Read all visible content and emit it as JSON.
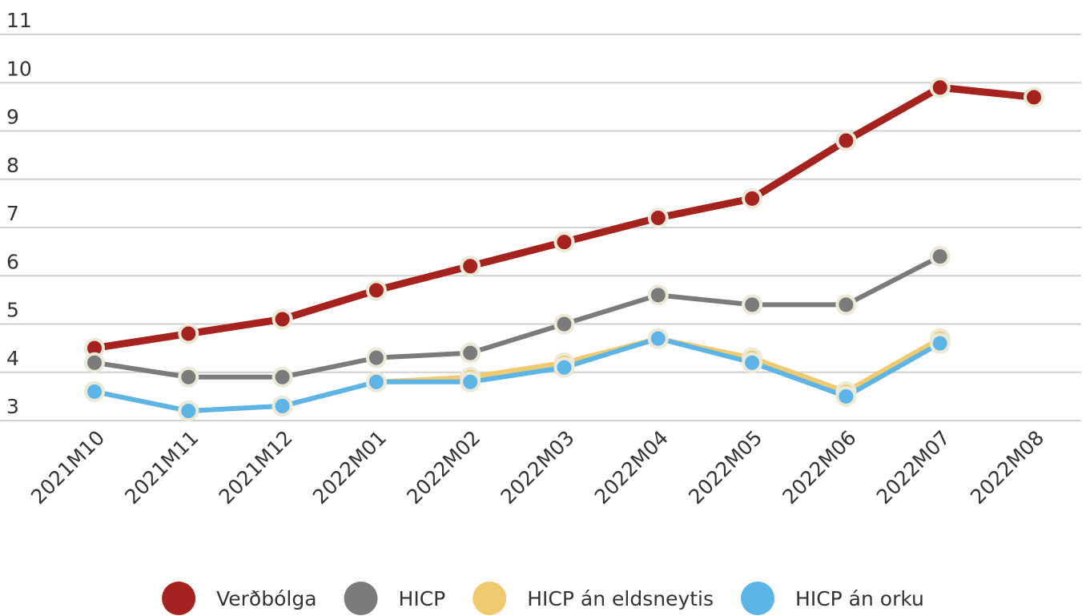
{
  "chart_data": {
    "type": "line",
    "categories": [
      "2021M10",
      "2021M11",
      "2021M12",
      "2022M01",
      "2022M02",
      "2022M03",
      "2022M04",
      "2022M05",
      "2022M06",
      "2022M07",
      "2022M08"
    ],
    "series": [
      {
        "name": "Verðbólga",
        "color": "#a5221e",
        "values": [
          4.5,
          4.8,
          5.1,
          5.7,
          6.2,
          6.7,
          7.2,
          7.6,
          8.8,
          9.9,
          9.7
        ]
      },
      {
        "name": "HICP",
        "color": "#7b7b7b",
        "values": [
          4.2,
          3.9,
          3.9,
          4.3,
          4.4,
          5.0,
          5.6,
          5.4,
          5.4,
          6.4,
          null
        ]
      },
      {
        "name": "HICP án eldsneytis",
        "color": "#f0ca6e",
        "values": [
          3.6,
          3.2,
          3.3,
          3.8,
          3.9,
          4.2,
          4.7,
          4.3,
          3.6,
          4.7,
          null
        ]
      },
      {
        "name": "HICP án orku",
        "color": "#5cb5e6",
        "values": [
          3.6,
          3.2,
          3.3,
          3.8,
          3.8,
          4.1,
          4.7,
          4.2,
          3.5,
          4.6,
          null
        ]
      }
    ],
    "ylim": [
      3,
      11
    ],
    "yticks": [
      3,
      4,
      5,
      6,
      7,
      8,
      9,
      10,
      11
    ],
    "grid": true,
    "legend": "bottom"
  }
}
